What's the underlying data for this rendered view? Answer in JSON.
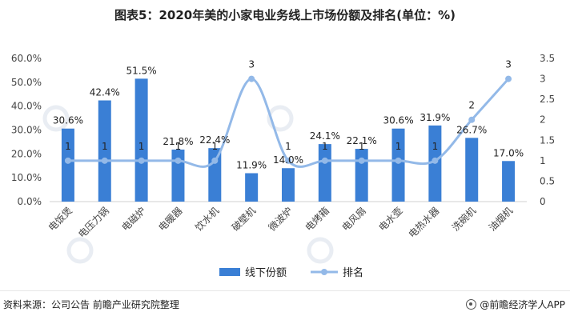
{
  "title": "图表5：2020年美的小家电业务线上市场份额及排名(单位：%)",
  "footer": {
    "source": "资料来源：公司公告 前瞻产业研究院整理",
    "brand": "@前瞻经济学人APP"
  },
  "colors": {
    "bar": "#3a7fd5",
    "line": "#93b9e8",
    "axis": "#d0d0d0",
    "text": "#444444",
    "watermark": "#e9edf3"
  },
  "chart_data": {
    "type": "bar",
    "categories": [
      "电饭煲",
      "电压力锅",
      "电磁炉",
      "电暖器",
      "饮水机",
      "破壁机",
      "微波炉",
      "电烤箱",
      "电风扇",
      "电水壶",
      "电热水器",
      "洗碗机",
      "油烟机"
    ],
    "series": [
      {
        "name": "线下份额",
        "type": "bar",
        "axis": "left",
        "values": [
          30.6,
          42.4,
          51.5,
          21.8,
          22.4,
          11.9,
          14.0,
          24.1,
          22.1,
          30.6,
          31.9,
          26.7,
          17.0
        ],
        "labels": [
          "30.6%",
          "42.4%",
          "51.5%",
          "21.8%",
          "22.4%",
          "11.9%",
          "14.0%",
          "24.1%",
          "22.1%",
          "30.6%",
          "31.9%",
          "26.7%",
          "17.0%"
        ]
      },
      {
        "name": "排名",
        "type": "line",
        "axis": "right",
        "values": [
          1,
          1,
          1,
          1,
          1,
          3,
          1,
          1,
          1,
          1,
          1,
          2,
          3
        ],
        "labels": [
          "1",
          "1",
          "1",
          "1",
          "1",
          "3",
          "1",
          "1",
          "1",
          "1",
          "1",
          "2",
          "3"
        ]
      }
    ],
    "y_left": {
      "min": 0,
      "max": 60,
      "ticks": [
        "0.0%",
        "10.0%",
        "20.0%",
        "30.0%",
        "40.0%",
        "50.0%",
        "60.0%"
      ]
    },
    "y_right": {
      "min": 0,
      "max": 3.5,
      "ticks": [
        "0",
        "0.5",
        "1",
        "1.5",
        "2",
        "2.5",
        "3",
        "3.5"
      ]
    },
    "grid": false,
    "legend": "bottom"
  }
}
